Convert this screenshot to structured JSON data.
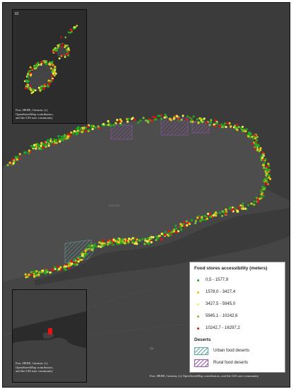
{
  "map": {
    "inset_top_credit": [
      "Esri, HERE, Garmin, (c)",
      "OpenStreetMap contributors,",
      "and the GIS user community"
    ],
    "inset_top_coord": "82",
    "inset_bottom_credit": [
      "Esri, HERE, Garmin, (c)",
      "OpenStreetMap contributors,",
      "and the GIS user community"
    ],
    "main_credit": "Esri, HERE, Garmin, (c) OpenStreetMap contributors, and the GIS user community",
    "place_labels": [
      "Gas Pen",
      "Sa"
    ]
  },
  "legend": {
    "title": "Food stores accessibility (meters)",
    "classes": [
      {
        "label": "0,5 - 1577,9",
        "color": "#22a81e"
      },
      {
        "label": "1578,0 - 3427,4",
        "color": "#e8c414"
      },
      {
        "label": "3427,5 - 5945,0",
        "color": "#f3f05a"
      },
      {
        "label": "5945,1 - 10242,6",
        "color": "#7dbd2f"
      },
      {
        "label": "10242,7 - 16297,2",
        "color": "#e31313"
      }
    ],
    "deserts_title": "Deserts",
    "deserts": [
      {
        "label": "Urban food deserts",
        "color": "#5aa8a0"
      },
      {
        "label": "Rural food deserts",
        "color": "#9b59b6"
      }
    ]
  }
}
